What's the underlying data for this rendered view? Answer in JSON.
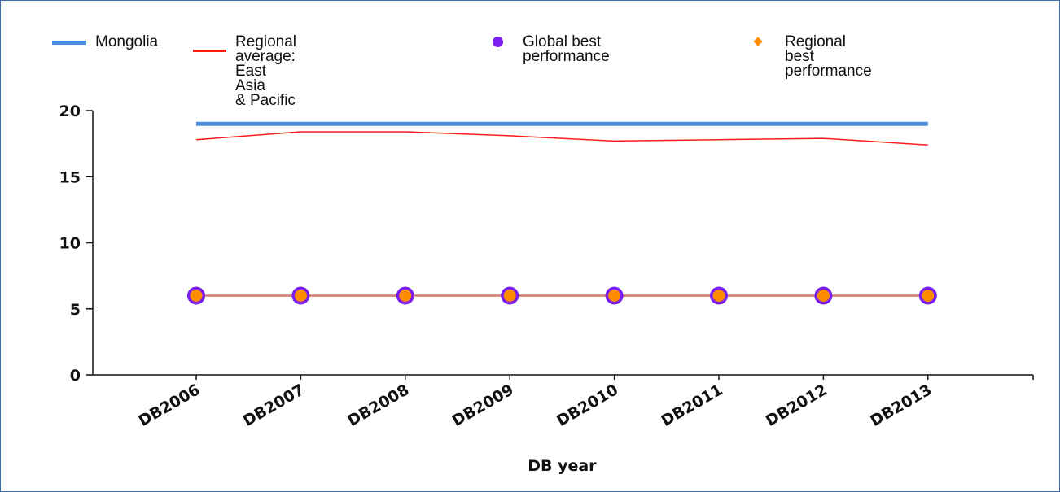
{
  "colors": {
    "mongolia": "#4a90e2",
    "regional_average": "#ff1a1a",
    "global_best": "#7a1ff0",
    "regional_best": "#ff8c00",
    "flat_line": "#d87a6a",
    "border": "#3c6aa8"
  },
  "legend": {
    "items": [
      {
        "label": "Mongolia",
        "marker": "line-thick",
        "color": "#4a90e2"
      },
      {
        "label": "Regional average: East Asia\n& Pacific",
        "marker": "line-thin",
        "color": "#ff1a1a"
      },
      {
        "label": "Global best performance",
        "marker": "circle",
        "color": "#7a1ff0"
      },
      {
        "label": "Regional best performance",
        "marker": "diamond",
        "color": "#ff8c00"
      }
    ]
  },
  "chart_data": {
    "type": "line",
    "categories": [
      "DB2006",
      "DB2007",
      "DB2008",
      "DB2009",
      "DB2010",
      "DB2011",
      "DB2012",
      "DB2013"
    ],
    "series": [
      {
        "name": "Mongolia",
        "values": [
          19,
          19,
          19,
          19,
          19,
          19,
          19,
          19
        ]
      },
      {
        "name": "Regional average: East Asia & Pacific",
        "values": [
          17.8,
          18.4,
          18.4,
          18.1,
          17.7,
          17.8,
          17.9,
          17.4
        ]
      },
      {
        "name": "Global best performance",
        "values": [
          6,
          6,
          6,
          6,
          6,
          6,
          6,
          6
        ]
      },
      {
        "name": "Regional best performance",
        "values": [
          6,
          6,
          6,
          6,
          6,
          6,
          6,
          6
        ]
      }
    ],
    "xlabel": "DB year",
    "ylabel": "",
    "ylim": [
      0,
      20
    ],
    "yticks": [
      0,
      5,
      10,
      15,
      20
    ],
    "grid": false,
    "legend_position": "top"
  }
}
